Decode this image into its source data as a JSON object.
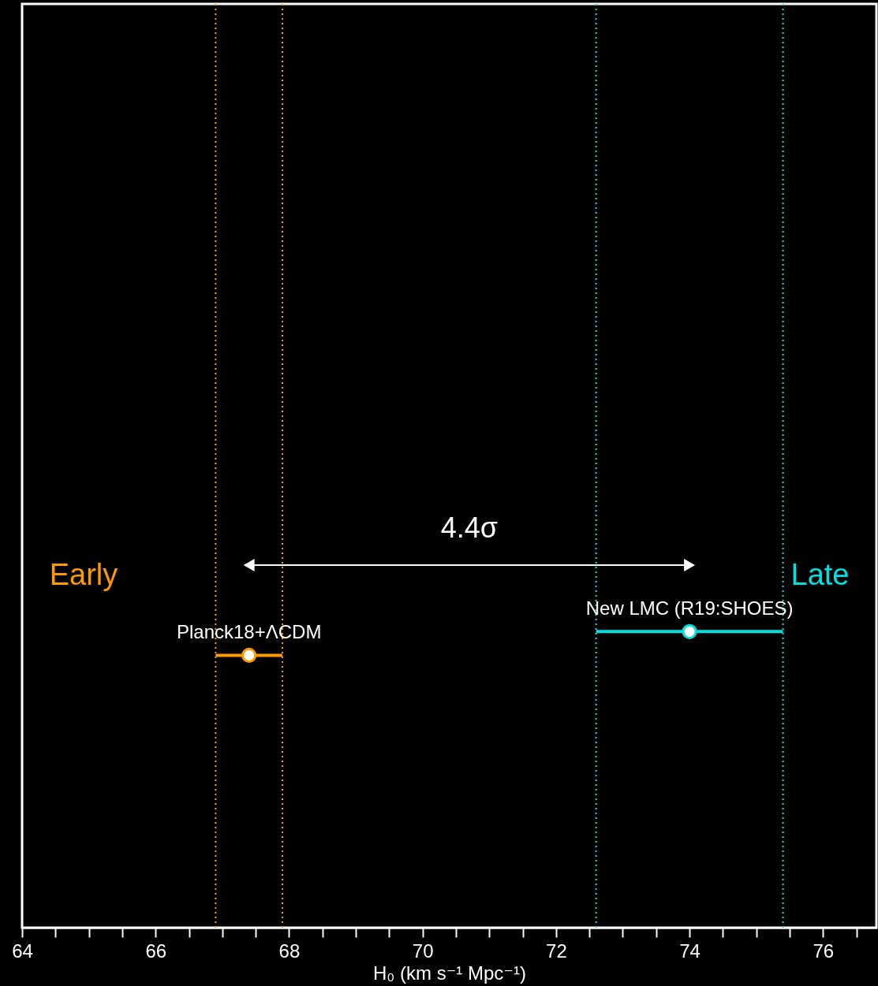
{
  "chart_data": {
    "type": "scatter",
    "orientation": "horizontal",
    "xlabel": "H₀ (km s⁻¹ Mpc⁻¹)",
    "xlim": [
      64,
      76.8
    ],
    "xticks": [
      64,
      {
        "value": 64.5,
        "label": null
      },
      {
        "value": 65,
        "label": null
      },
      {
        "value": 65.5,
        "label": null
      },
      66,
      {
        "value": 66.5,
        "label": null
      },
      {
        "value": 67,
        "label": null
      },
      {
        "value": 67.5,
        "label": null
      },
      68,
      {
        "value": 68.5,
        "label": null
      },
      {
        "value": 69,
        "label": null
      },
      {
        "value": 69.5,
        "label": null
      },
      70,
      {
        "value": 70.5,
        "label": null
      },
      {
        "value": 71,
        "label": null
      },
      {
        "value": 71.5,
        "label": null
      },
      72,
      {
        "value": 72.5,
        "label": null
      },
      {
        "value": 73,
        "label": null
      },
      {
        "value": 73.5,
        "label": null
      },
      74,
      {
        "value": 74.5,
        "label": null
      },
      {
        "value": 75,
        "label": null
      },
      {
        "value": 75.5,
        "label": null
      },
      76,
      {
        "value": 76.5,
        "label": null
      }
    ],
    "categories": [
      null,
      null,
      null,
      null,
      null,
      null,
      null,
      null,
      null,
      null,
      null,
      null,
      null,
      null,
      null,
      null,
      null,
      null,
      null,
      null,
      null,
      null,
      null,
      null,
      null,
      null,
      null,
      null,
      null,
      null,
      null,
      null,
      null,
      null,
      null,
      null,
      null,
      null,
      null
    ],
    "tick_labels": "x",
    "marker": "circle",
    "series": [
      {
        "name": "New LMC (R19:SHOES)",
        "color": "#00e0e0",
        "values": [
          null,
          null,
          null,
          null,
          null,
          null,
          null,
          null,
          null,
          null,
          null,
          null,
          null,
          null,
          null,
          null,
          null,
          null,
          null,
          null,
          null,
          null,
          null,
          null,
          null,
          null,
          74.0,
          null,
          null,
          null,
          null,
          null,
          null,
          null,
          null,
          null,
          null,
          null,
          null
        ],
        "errors": [
          null,
          null,
          null,
          null,
          null,
          null,
          null,
          null,
          null,
          null,
          null,
          null,
          null,
          null,
          null,
          null,
          null,
          null,
          null,
          null,
          null,
          null,
          null,
          null,
          null,
          null,
          1.4,
          null,
          null,
          null,
          null,
          null,
          null,
          null,
          null,
          null,
          null,
          null,
          null
        ]
      },
      {
        "name": "Planck18+ΛCDM",
        "color": "#ff9900",
        "values": [
          null,
          null,
          null,
          null,
          null,
          null,
          null,
          null,
          null,
          null,
          null,
          null,
          null,
          null,
          null,
          null,
          null,
          null,
          null,
          null,
          null,
          null,
          null,
          null,
          null,
          null,
          null,
          67.4,
          null,
          null,
          null,
          null,
          null,
          null,
          null,
          null,
          null,
          null,
          null
        ],
        "errors": [
          null,
          null,
          null,
          null,
          null,
          null,
          null,
          null,
          null,
          null,
          null,
          null,
          null,
          null,
          null,
          null,
          null,
          null,
          null,
          null,
          null,
          null,
          null,
          null,
          null,
          null,
          null,
          0.5,
          null,
          null,
          null,
          null,
          null,
          null,
          null,
          null,
          null,
          null,
          null
        ]
      }
    ],
    "ref_lines": [
      {
        "axis": "x",
        "value": 66.9,
        "color": "#ff9900",
        "line_style": "dotted"
      },
      {
        "axis": "x",
        "value": 67.9,
        "color": "#ff9900",
        "line_style": "dotted"
      },
      {
        "axis": "x",
        "value": 72.6,
        "color": "#00e0e0",
        "line_style": "dotted"
      },
      {
        "axis": "x",
        "value": 75.4,
        "color": "#00e0e0",
        "line_style": "dotted"
      }
    ],
    "annotations": [
      "Early",
      "4.4σ",
      "Late"
    ]
  }
}
